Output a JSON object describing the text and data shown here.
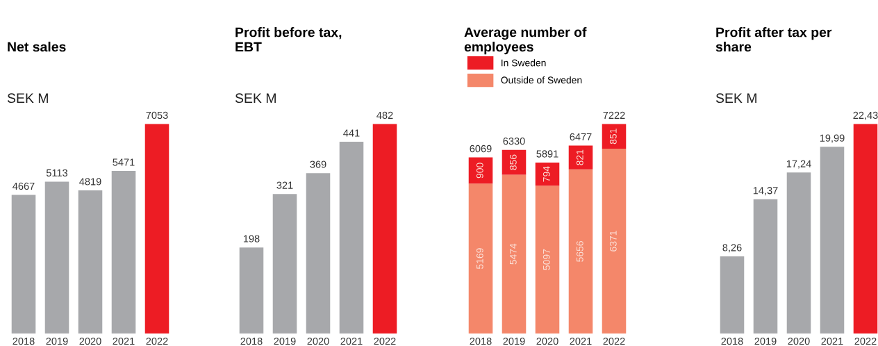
{
  "chart_data": [
    {
      "type": "bar",
      "title": "Net sales",
      "annotations": [
        "SEK M"
      ],
      "categories": [
        "2018",
        "2019",
        "2020",
        "2021",
        "2022"
      ],
      "values": [
        4667,
        5113,
        4819,
        5471,
        7053
      ],
      "colors": [
        "#a7a8ab",
        "#a7a8ab",
        "#a7a8ab",
        "#a7a8ab",
        "#ed1c24"
      ],
      "data_labels": true
    },
    {
      "type": "bar",
      "title": "Profit before tax,\nEBT",
      "annotations": [
        "SEK M"
      ],
      "categories": [
        "2018",
        "2019",
        "2020",
        "2021",
        "2022"
      ],
      "values": [
        198,
        321,
        369,
        441,
        482
      ],
      "colors": [
        "#a7a8ab",
        "#a7a8ab",
        "#a7a8ab",
        "#a7a8ab",
        "#ed1c24"
      ],
      "data_labels": true
    },
    {
      "type": "bar",
      "title": "Average number of\nemployees",
      "categories": [
        "2018",
        "2019",
        "2020",
        "2021",
        "2022"
      ],
      "stacked": true,
      "legend": "top left",
      "data_labels": true,
      "series": [
        {
          "name": "Outside of Sweden",
          "color": "#f4876a",
          "values": [
            5169,
            5474,
            5097,
            5656,
            6371
          ]
        },
        {
          "name": "In Sweden",
          "color": "#ed1c24",
          "values": [
            900,
            856,
            794,
            821,
            851
          ]
        }
      ],
      "totals": [
        "6069",
        "6330",
        "5891",
        "6477",
        "7222"
      ]
    },
    {
      "type": "bar",
      "title": "Profit after tax per\nshare",
      "annotations": [
        "SEK M"
      ],
      "categories": [
        "2018",
        "2019",
        "2020",
        "2021",
        "2022"
      ],
      "values": [
        8.26,
        14.37,
        17.24,
        19.99,
        22.43
      ],
      "colors": [
        "#a7a8ab",
        "#a7a8ab",
        "#a7a8ab",
        "#a7a8ab",
        "#ed1c24"
      ],
      "value_labels": [
        "8,26",
        "14,37",
        "17,24",
        "19,99",
        "22,43"
      ]
    }
  ]
}
